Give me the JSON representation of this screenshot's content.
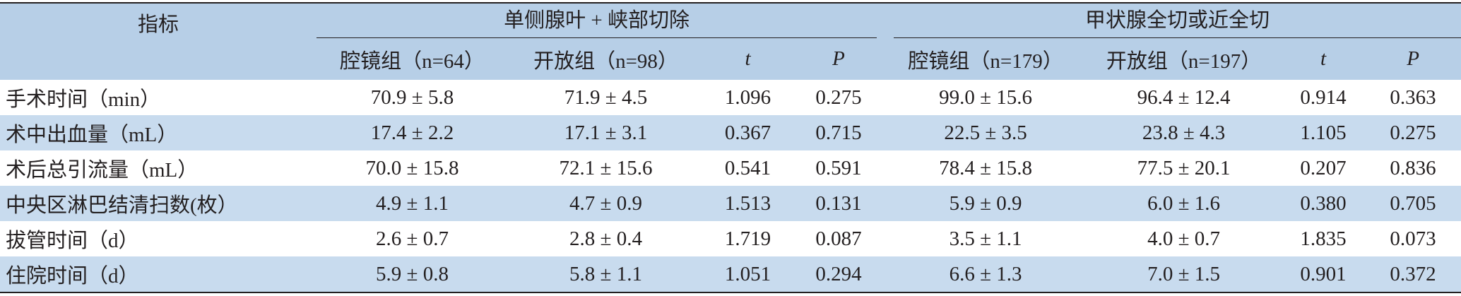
{
  "table": {
    "header": {
      "label": "指标",
      "groups": [
        "单侧腺叶 + 峡部切除",
        "甲状腺全切或近全切"
      ],
      "columns": [
        "腔镜组（n=64）",
        "开放组（n=98）",
        "t",
        "P",
        "腔镜组（n=179）",
        "开放组（n=197）",
        "t",
        "P"
      ]
    },
    "rows": [
      [
        "手术时间（min）",
        "70.9 ± 5.8",
        "71.9 ± 4.5",
        "1.096",
        "0.275",
        "99.0 ± 15.6",
        "96.4 ± 12.4",
        "0.914",
        "0.363"
      ],
      [
        "术中出血量（mL）",
        "17.4 ± 2.2",
        "17.1 ± 3.1",
        "0.367",
        "0.715",
        "22.5 ± 3.5",
        "23.8 ± 4.3",
        "1.105",
        "0.275"
      ],
      [
        "术后总引流量（mL）",
        "70.0 ± 15.8",
        "72.1 ± 15.6",
        "0.541",
        "0.591",
        "78.4 ± 15.8",
        "77.5 ± 20.1",
        "0.207",
        "0.836"
      ],
      [
        "中央区淋巴结清扫数(枚）",
        "4.9 ± 1.1",
        "4.7 ± 0.9",
        "1.513",
        "0.131",
        "5.9 ± 0.9",
        "6.0 ± 1.6",
        "0.380",
        "0.705"
      ],
      [
        "拔管时间（d）",
        "2.6 ± 0.7",
        "2.8 ± 0.4",
        "1.719",
        "0.087",
        "3.5 ± 1.1",
        "4.0 ± 0.7",
        "1.835",
        "0.073"
      ],
      [
        "住院时间（d）",
        "5.9 ± 0.8",
        "5.8 ± 1.1",
        "1.051",
        "0.294",
        "6.6 ± 1.3",
        "7.0 ± 1.5",
        "0.901",
        "0.372"
      ]
    ]
  }
}
